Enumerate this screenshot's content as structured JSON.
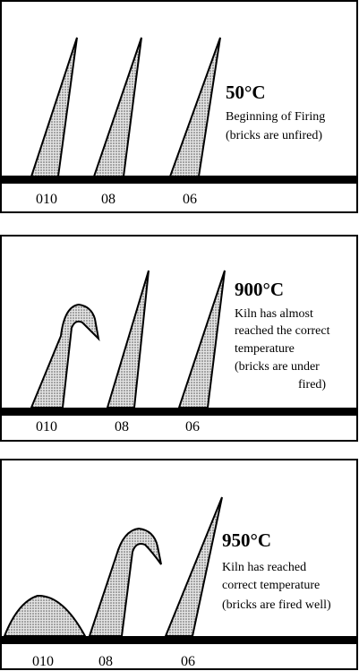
{
  "panels": [
    {
      "temperature": "50°C",
      "description": [
        "Beginning of Firing",
        "(bricks are unfired)"
      ],
      "cones": [
        "010",
        "08",
        "06"
      ]
    },
    {
      "temperature": "900°C",
      "description": [
        "Kiln has almost",
        "reached the correct",
        "temperature",
        "(bricks are under",
        "fired)"
      ],
      "cones": [
        "010",
        "08",
        "06"
      ]
    },
    {
      "temperature": "950°C",
      "description": [
        "Kiln has reached",
        "correct temperature",
        "(bricks are fired well)"
      ],
      "cones": [
        "010",
        "08",
        "06"
      ]
    }
  ]
}
